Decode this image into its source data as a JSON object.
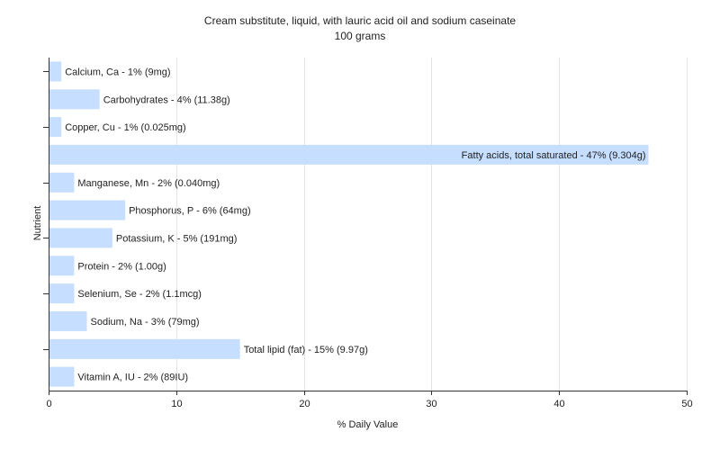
{
  "chart_data": {
    "type": "bar",
    "orientation": "horizontal",
    "title": "Cream substitute, liquid, with lauric acid oil and sodium caseinate",
    "subtitle": "100 grams",
    "xlabel": "% Daily Value",
    "ylabel": "Nutrient",
    "xlim": [
      0,
      50
    ],
    "xticks": [
      0,
      10,
      20,
      30,
      40,
      50
    ],
    "grid": true,
    "bar_color": "#c6deff",
    "categories": [
      "Calcium, Ca",
      "Carbohydrates",
      "Copper, Cu",
      "Fatty acids, total saturated",
      "Manganese, Mn",
      "Phosphorus, P",
      "Potassium, K",
      "Protein",
      "Selenium, Se",
      "Sodium, Na",
      "Total lipid (fat)",
      "Vitamin A, IU"
    ],
    "values": [
      1,
      4,
      1,
      47,
      2,
      6,
      5,
      2,
      2,
      3,
      15,
      2
    ],
    "labels": [
      "Calcium, Ca - 1% (9mg)",
      "Carbohydrates - 4% (11.38g)",
      "Copper, Cu - 1% (0.025mg)",
      "Fatty acids, total saturated - 47% (9.304g)",
      "Manganese, Mn - 2% (0.040mg)",
      "Phosphorus, P - 6% (64mg)",
      "Potassium, K - 5% (191mg)",
      "Protein - 2% (1.00g)",
      "Selenium, Se - 2% (1.1mcg)",
      "Sodium, Na - 3% (79mg)",
      "Total lipid (fat) - 15% (9.97g)",
      "Vitamin A, IU - 2% (89IU)"
    ]
  }
}
